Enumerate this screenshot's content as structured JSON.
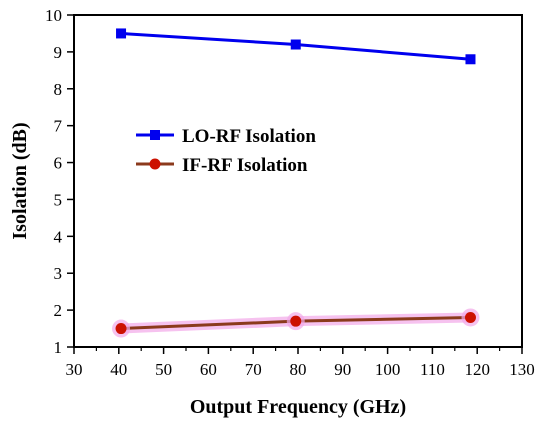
{
  "chart_data": {
    "type": "line",
    "xlabel": "Output Frequency (GHz)",
    "ylabel": "Isolation (dB)",
    "xlim": [
      30,
      130
    ],
    "ylim": [
      1,
      10
    ],
    "xticks": [
      30,
      40,
      50,
      60,
      70,
      80,
      90,
      100,
      110,
      120,
      130
    ],
    "yticks": [
      1,
      2,
      3,
      4,
      5,
      6,
      7,
      8,
      9,
      10
    ],
    "grid": false,
    "legend_placement": "center-left",
    "series": [
      {
        "name": "LO-RF Isolation",
        "marker": "square",
        "color": "#0000ee",
        "x": [
          40.5,
          79.5,
          118.5
        ],
        "y": [
          9.5,
          9.2,
          8.8
        ]
      },
      {
        "name": "IF-RF Isolation",
        "marker": "circle",
        "color": "#cc1100",
        "line_color": "#8b3a1c",
        "halo_color": "#f2a8e8",
        "x": [
          40.5,
          79.5,
          118.5
        ],
        "y": [
          1.5,
          1.7,
          1.8
        ]
      }
    ]
  }
}
